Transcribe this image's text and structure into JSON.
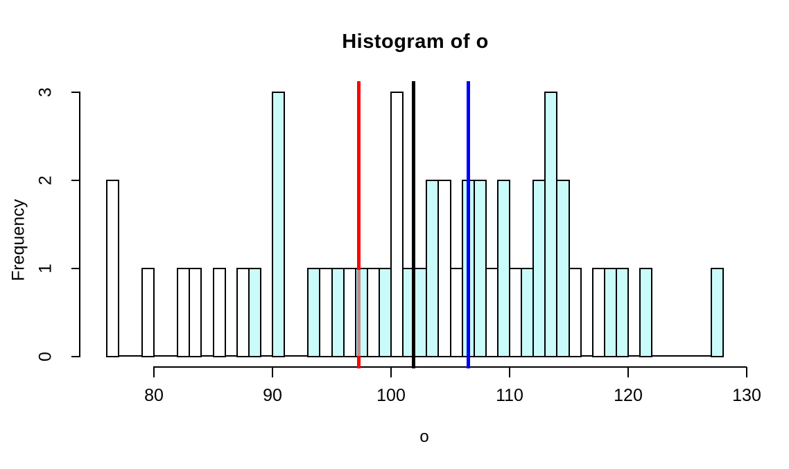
{
  "chart_data": {
    "type": "bar",
    "subtype": "histogram",
    "title": "Histogram of o",
    "xlabel": "o",
    "ylabel": "Frequency",
    "x_tick_labels": [
      "80",
      "90",
      "100",
      "110",
      "120",
      "130"
    ],
    "x_tick_values": [
      80,
      90,
      100,
      110,
      120,
      130
    ],
    "y_tick_labels": [
      "0",
      "1",
      "2",
      "3"
    ],
    "y_tick_values": [
      0,
      1,
      2,
      3
    ],
    "xlim": [
      76,
      130
    ],
    "ylim": [
      0,
      3
    ],
    "bin_width": 1,
    "grid": false,
    "bins": [
      {
        "start": 76,
        "count": 2,
        "overlay": false
      },
      {
        "start": 79,
        "count": 1,
        "overlay": false
      },
      {
        "start": 82,
        "count": 1,
        "overlay": false
      },
      {
        "start": 83,
        "count": 1,
        "overlay": false
      },
      {
        "start": 85,
        "count": 1,
        "overlay": false
      },
      {
        "start": 87,
        "count": 1,
        "overlay": false
      },
      {
        "start": 88,
        "count": 1,
        "overlay": true
      },
      {
        "start": 90,
        "count": 3,
        "overlay": true
      },
      {
        "start": 93,
        "count": 1,
        "overlay": true
      },
      {
        "start": 94,
        "count": 1,
        "overlay": false
      },
      {
        "start": 95,
        "count": 1,
        "overlay": true
      },
      {
        "start": 96,
        "count": 1,
        "overlay": false
      },
      {
        "start": 97,
        "count": 1,
        "overlay": true
      },
      {
        "start": 98,
        "count": 1,
        "overlay": false
      },
      {
        "start": 99,
        "count": 1,
        "overlay": true
      },
      {
        "start": 100,
        "count": 3,
        "overlay": false
      },
      {
        "start": 101,
        "count": 1,
        "overlay": true
      },
      {
        "start": 102,
        "count": 1,
        "overlay": true
      },
      {
        "start": 103,
        "count": 2,
        "overlay": true
      },
      {
        "start": 104,
        "count": 2,
        "overlay": false
      },
      {
        "start": 105,
        "count": 1,
        "overlay": false
      },
      {
        "start": 106,
        "count": 2,
        "overlay": true
      },
      {
        "start": 107,
        "count": 2,
        "overlay": true
      },
      {
        "start": 108,
        "count": 1,
        "overlay": false
      },
      {
        "start": 109,
        "count": 2,
        "overlay": true
      },
      {
        "start": 110,
        "count": 1,
        "overlay": false
      },
      {
        "start": 111,
        "count": 1,
        "overlay": true
      },
      {
        "start": 112,
        "count": 2,
        "overlay": true
      },
      {
        "start": 113,
        "count": 3,
        "overlay": true
      },
      {
        "start": 114,
        "count": 2,
        "overlay": true
      },
      {
        "start": 115,
        "count": 1,
        "overlay": false
      },
      {
        "start": 117,
        "count": 1,
        "overlay": false
      },
      {
        "start": 118,
        "count": 1,
        "overlay": true
      },
      {
        "start": 119,
        "count": 1,
        "overlay": true
      },
      {
        "start": 121,
        "count": 1,
        "overlay": true
      },
      {
        "start": 127,
        "count": 1,
        "overlay": true
      }
    ],
    "vlines": [
      {
        "name": "red-line",
        "value": 97.3,
        "color": "#ff0000",
        "tinted_segment": {
          "from_freq": 1,
          "to_freq": 0,
          "color": "#bd8c8c"
        }
      },
      {
        "name": "black-line",
        "value": 101.9,
        "color": "#000000"
      },
      {
        "name": "blue-line",
        "value": 106.5,
        "color": "#0000ff"
      }
    ],
    "colors": {
      "bar_fill": "#ffffff",
      "overlay_fill": "#cafbfb",
      "bar_border": "#000000",
      "background": "#ffffff"
    },
    "legend": null
  }
}
